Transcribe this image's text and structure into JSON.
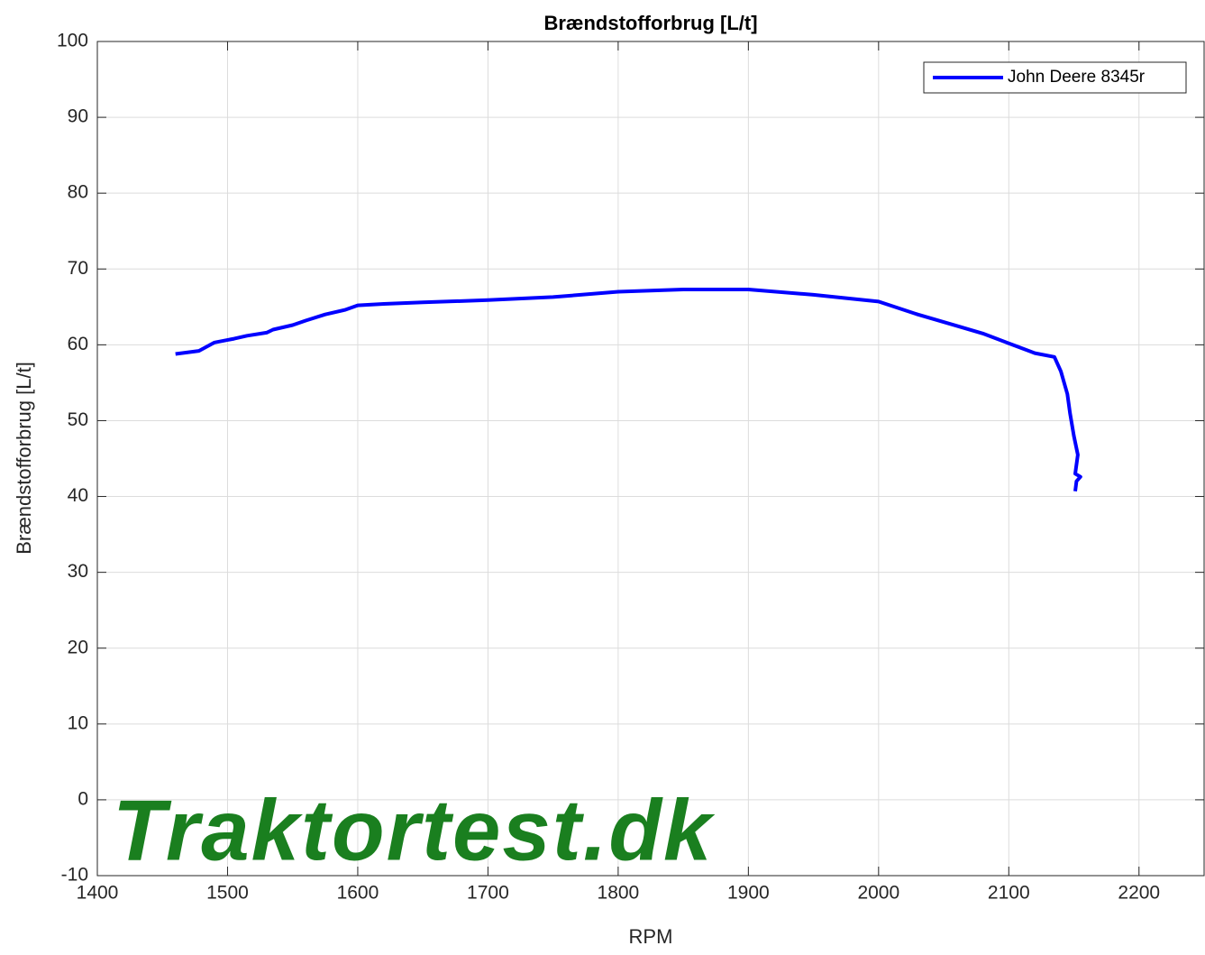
{
  "chart_data": {
    "type": "line",
    "title": "Brændstofforbrug [L/t]",
    "xlabel": "RPM",
    "ylabel": "Brændstofforbrug [L/t]",
    "annotation": "Traktortest.dk",
    "xlim": [
      1400,
      2250
    ],
    "ylim": [
      -10,
      100
    ],
    "xticks": [
      1400,
      1500,
      1600,
      1700,
      1800,
      1900,
      2000,
      2100,
      2200
    ],
    "yticks": [
      -10,
      0,
      10,
      20,
      30,
      40,
      50,
      60,
      70,
      80,
      90,
      100
    ],
    "grid": true,
    "legend": "upper right",
    "series": [
      {
        "name": "John Deere 8345r",
        "color": "#0000ff",
        "x": [
          1460,
          1478,
          1490,
          1505,
          1515,
          1530,
          1535,
          1550,
          1560,
          1575,
          1590,
          1600,
          1620,
          1650,
          1700,
          1750,
          1800,
          1850,
          1900,
          1950,
          2000,
          2030,
          2060,
          2080,
          2100,
          2120,
          2135,
          2140,
          2145,
          2147,
          2150,
          2153,
          2151,
          2155,
          2152,
          2151
        ],
        "values": [
          58.8,
          59.2,
          60.3,
          60.8,
          61.2,
          61.6,
          62.0,
          62.6,
          63.2,
          64.0,
          64.6,
          65.2,
          65.4,
          65.6,
          65.9,
          66.3,
          67.0,
          67.3,
          67.3,
          66.6,
          65.7,
          64.0,
          62.5,
          61.5,
          60.2,
          58.9,
          58.4,
          56.5,
          53.5,
          51.0,
          48.0,
          45.5,
          43.0,
          42.6,
          42.0,
          40.7
        ]
      }
    ]
  }
}
